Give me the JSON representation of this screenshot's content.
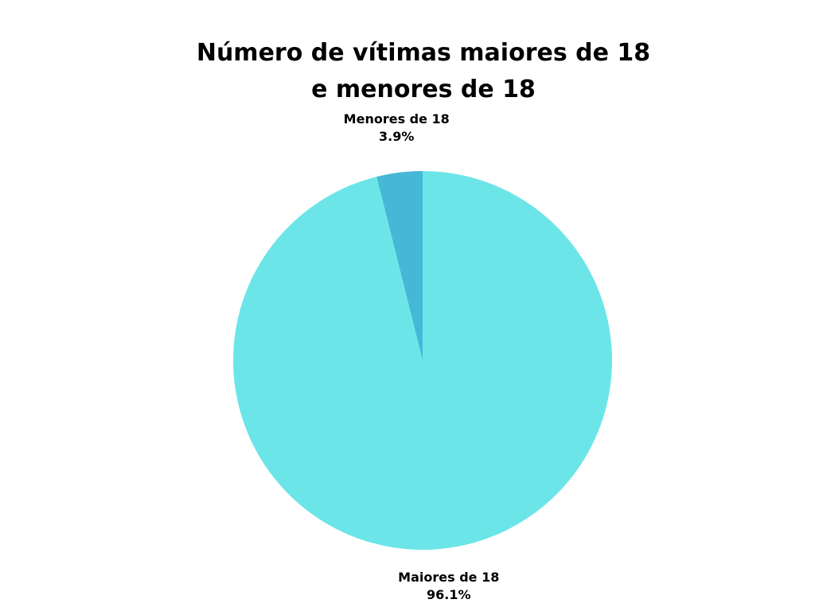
{
  "chart_data": {
    "type": "pie",
    "title_lines": [
      "Número de vítimas maiores de 18",
      "e menores de 18"
    ],
    "slices": [
      {
        "name": "Maiores de 18",
        "value": 96.1,
        "value_label": "96.1%",
        "color": "#6ce5e8"
      },
      {
        "name": "Menores de 18",
        "value": 3.9,
        "value_label": "3.9%",
        "color": "#44b8d6"
      }
    ],
    "legend": "none",
    "labels": "outside"
  }
}
